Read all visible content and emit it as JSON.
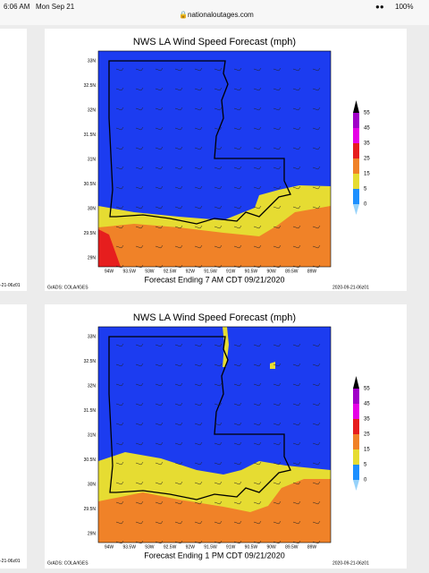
{
  "status": {
    "time": "6:06 AM",
    "date": "Mon Sep 21",
    "url": "nationaloutages.com",
    "battery": "100%"
  },
  "side_card": {
    "stamps": [
      "-21-06z01",
      "-21-06z01"
    ]
  },
  "axes": {
    "lat_labels": [
      "33N",
      "32.5N",
      "32N",
      "31.5N",
      "31N",
      "30.5N",
      "30N",
      "29.5N",
      "29N"
    ],
    "lon_labels": [
      "94W",
      "93.5W",
      "93W",
      "92.5W",
      "92W",
      "91.5W",
      "91W",
      "90.5W",
      "90W",
      "89.5W",
      "89W"
    ],
    "legend_labels": [
      "55",
      "45",
      "35",
      "25",
      "15",
      "5",
      "0"
    ]
  },
  "cards": [
    {
      "title": "NWS LA Wind Speed Forecast (mph)",
      "subtitle": "Forecast Ending 7 AM CDT 09/21/2020",
      "credit": "GrADS: COLA/IGES",
      "stamp": "2020-09-21-06z01"
    },
    {
      "title": "NWS LA Wind Speed Forecast (mph)",
      "subtitle": "Forecast Ending 1 PM CDT 09/21/2020",
      "credit": "GrADS: COLA/IGES",
      "stamp": "2020-09-21-06z01"
    }
  ]
}
